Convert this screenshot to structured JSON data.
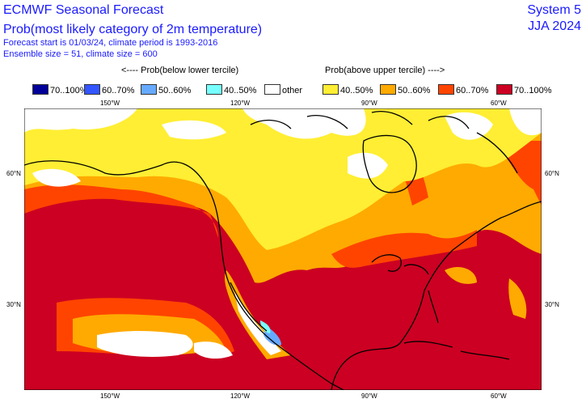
{
  "header": {
    "title": "ECMWF Seasonal Forecast",
    "subtitle": "Prob(most likely category of 2m temperature)",
    "line1": "Forecast start is 01/03/24, climate period is 1993-2016",
    "line2": "Ensemble size = 51, climate size = 600",
    "system": "System 5",
    "season": "JJA 2024"
  },
  "legend": {
    "below_title": "<---- Prob(below lower tercile)",
    "above_title": "Prob(above upper tercile) ---->",
    "items": [
      {
        "label": "70..100%",
        "color": "#000099"
      },
      {
        "label": "60..70%",
        "color": "#3355ff"
      },
      {
        "label": "50..60%",
        "color": "#66aaff"
      },
      {
        "label": "40..50%",
        "color": "#77ffff"
      },
      {
        "label": "other",
        "color": "#ffffff"
      },
      {
        "label": "40..50%",
        "color": "#ffee33"
      },
      {
        "label": "50..60%",
        "color": "#ffaa00"
      },
      {
        "label": "60..70%",
        "color": "#ff4400"
      },
      {
        "label": "70..100%",
        "color": "#cc0022"
      }
    ]
  },
  "axes": {
    "lon": [
      "150°W",
      "120°W",
      "90°W",
      "60°W"
    ],
    "lat": [
      "60°N",
      "30°N"
    ]
  }
}
